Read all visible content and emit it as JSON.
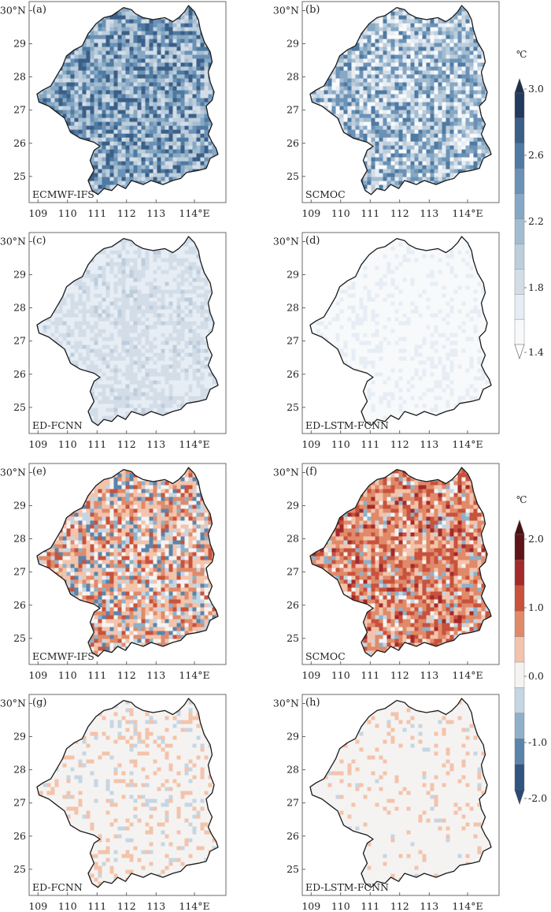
{
  "figure": {
    "x_ticks": [
      "109",
      "110",
      "111",
      "112",
      "113",
      "114°E"
    ],
    "y_ticks": [
      "30°N",
      "29",
      "28",
      "27",
      "26",
      "25"
    ]
  },
  "colorbars": [
    {
      "unit": "℃",
      "tick_labels": [
        "3.0",
        "2.6",
        "2.2",
        "1.8",
        "1.4"
      ],
      "colors": [
        "#233a5e",
        "#3b5f86",
        "#4f7aa2",
        "#6b92b6",
        "#86a8c4",
        "#a3bccf",
        "#bccddc",
        "#d3dde8",
        "#e7edf4",
        "#f7f9fb"
      ]
    },
    {
      "unit": "℃",
      "tick_labels": [
        "2.0",
        "1.0",
        "0.0",
        "-1.0",
        "-2.0"
      ],
      "colors": [
        "#5e1418",
        "#a32a2b",
        "#c8523d",
        "#e08a6a",
        "#f3c3ab",
        "#f5f3f1",
        "#c5d6e3",
        "#8fb0c8",
        "#5b84ab",
        "#31557f"
      ]
    }
  ],
  "chart_data": [
    {
      "type": "heatmap",
      "panel": "(a)",
      "model": "ECMWF-IFS",
      "colorbar": 0,
      "value_range": [
        1.4,
        3.0
      ],
      "mean_value": 2.4
    },
    {
      "type": "heatmap",
      "panel": "(b)",
      "model": "SCMOC",
      "colorbar": 0,
      "value_range": [
        1.4,
        3.0
      ],
      "mean_value": 2.2
    },
    {
      "type": "heatmap",
      "panel": "(c)",
      "model": "ED-FCNN",
      "colorbar": 0,
      "value_range": [
        1.4,
        3.0
      ],
      "mean_value": 1.6
    },
    {
      "type": "heatmap",
      "panel": "(d)",
      "model": "ED-LSTM-FCNN",
      "colorbar": 0,
      "value_range": [
        1.4,
        3.0
      ],
      "mean_value": 1.45
    },
    {
      "type": "heatmap",
      "panel": "(e)",
      "model": "ECMWF-IFS",
      "colorbar": 1,
      "value_range": [
        -2.0,
        2.0
      ],
      "mean_value": 0.4
    },
    {
      "type": "heatmap",
      "panel": "(f)",
      "model": "SCMOC",
      "colorbar": 1,
      "value_range": [
        -2.0,
        2.0
      ],
      "mean_value": 0.8
    },
    {
      "type": "heatmap",
      "panel": "(g)",
      "model": "ED-FCNN",
      "colorbar": 1,
      "value_range": [
        -2.0,
        2.0
      ],
      "mean_value": 0.05
    },
    {
      "type": "heatmap",
      "panel": "(h)",
      "model": "ED-LSTM-FCNN",
      "colorbar": 1,
      "value_range": [
        -2.0,
        2.0
      ],
      "mean_value": 0.03
    }
  ]
}
